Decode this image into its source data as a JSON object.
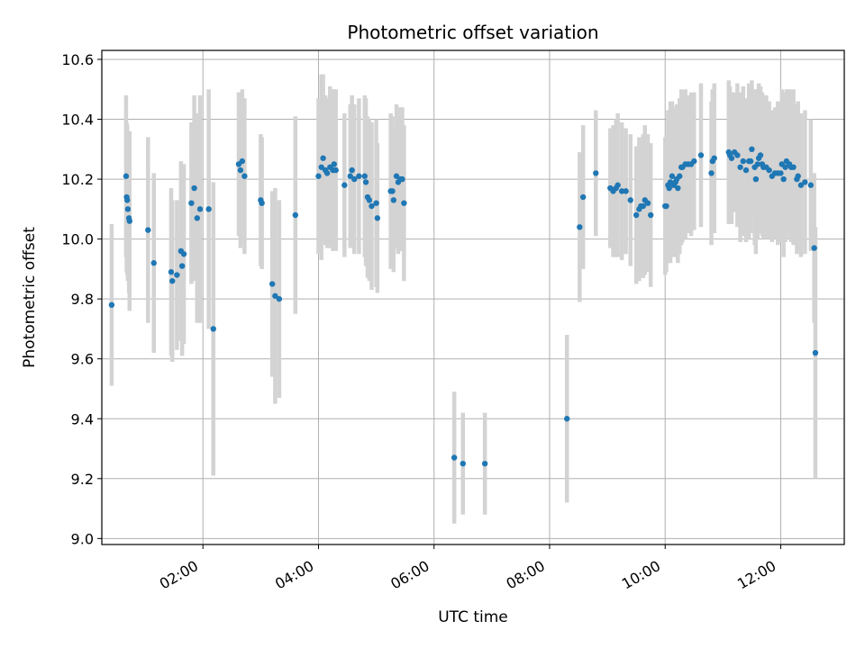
{
  "chart_data": {
    "type": "scatter",
    "title": "Photometric offset variation",
    "xlabel": "UTC time",
    "ylabel": "Photometric offset",
    "x_unit": "hours UTC",
    "xlim": [
      0.25,
      13.1
    ],
    "ylim": [
      8.98,
      10.63
    ],
    "yticks": [
      9.0,
      9.2,
      9.4,
      9.6,
      9.8,
      10.0,
      10.2,
      10.4,
      10.6
    ],
    "xticks": [
      2,
      4,
      6,
      8,
      10,
      12
    ],
    "xtick_labels": [
      "02:00",
      "04:00",
      "06:00",
      "08:00",
      "10:00",
      "12:00"
    ],
    "grid": true,
    "colors": {
      "point": "#1f77b4",
      "errorbar": "#d3d3d3",
      "grid": "#b0b0b0",
      "axes": "#000000"
    },
    "series": [
      {
        "points": [
          {
            "x": 0.42,
            "y": 9.78,
            "err": 0.27
          },
          {
            "x": 0.67,
            "y": 10.21,
            "err": 0.27
          },
          {
            "x": 0.68,
            "y": 10.14,
            "err": 0.25
          },
          {
            "x": 0.69,
            "y": 10.13,
            "err": 0.25
          },
          {
            "x": 0.7,
            "y": 10.1,
            "err": 0.24
          },
          {
            "x": 0.72,
            "y": 10.07,
            "err": 0.25
          },
          {
            "x": 0.73,
            "y": 10.06,
            "err": 0.3
          },
          {
            "x": 1.05,
            "y": 10.03,
            "err": 0.31
          },
          {
            "x": 1.15,
            "y": 9.92,
            "err": 0.3
          },
          {
            "x": 1.45,
            "y": 9.89,
            "err": 0.28
          },
          {
            "x": 1.47,
            "y": 9.86,
            "err": 0.27
          },
          {
            "x": 1.55,
            "y": 9.88,
            "err": 0.25
          },
          {
            "x": 1.62,
            "y": 9.96,
            "err": 0.3
          },
          {
            "x": 1.64,
            "y": 9.91,
            "err": 0.3
          },
          {
            "x": 1.67,
            "y": 9.95,
            "err": 0.3
          },
          {
            "x": 1.8,
            "y": 10.12,
            "err": 0.27
          },
          {
            "x": 1.85,
            "y": 10.17,
            "err": 0.31
          },
          {
            "x": 1.9,
            "y": 10.07,
            "err": 0.35
          },
          {
            "x": 1.95,
            "y": 10.1,
            "err": 0.38
          },
          {
            "x": 2.1,
            "y": 10.1,
            "err": 0.4
          },
          {
            "x": 2.18,
            "y": 9.7,
            "err": 0.49
          },
          {
            "x": 2.62,
            "y": 10.25,
            "err": 0.24
          },
          {
            "x": 2.65,
            "y": 10.23,
            "err": 0.26
          },
          {
            "x": 2.68,
            "y": 10.26,
            "err": 0.24
          },
          {
            "x": 2.72,
            "y": 10.21,
            "err": 0.26
          },
          {
            "x": 3.0,
            "y": 10.13,
            "err": 0.22
          },
          {
            "x": 3.02,
            "y": 10.12,
            "err": 0.22
          },
          {
            "x": 3.2,
            "y": 9.85,
            "err": 0.31
          },
          {
            "x": 3.25,
            "y": 9.81,
            "err": 0.36
          },
          {
            "x": 3.32,
            "y": 9.8,
            "err": 0.33
          },
          {
            "x": 3.6,
            "y": 10.08,
            "err": 0.33
          },
          {
            "x": 4.0,
            "y": 10.21,
            "err": 0.26
          },
          {
            "x": 4.05,
            "y": 10.24,
            "err": 0.31
          },
          {
            "x": 4.08,
            "y": 10.27,
            "err": 0.28
          },
          {
            "x": 4.12,
            "y": 10.23,
            "err": 0.25
          },
          {
            "x": 4.15,
            "y": 10.22,
            "err": 0.25
          },
          {
            "x": 4.2,
            "y": 10.24,
            "err": 0.27
          },
          {
            "x": 4.25,
            "y": 10.23,
            "err": 0.27
          },
          {
            "x": 4.27,
            "y": 10.25,
            "err": 0.25
          },
          {
            "x": 4.3,
            "y": 10.23,
            "err": 0.27
          },
          {
            "x": 4.45,
            "y": 10.18,
            "err": 0.24
          },
          {
            "x": 4.55,
            "y": 10.21,
            "err": 0.24
          },
          {
            "x": 4.58,
            "y": 10.23,
            "err": 0.25
          },
          {
            "x": 4.62,
            "y": 10.2,
            "err": 0.25
          },
          {
            "x": 4.7,
            "y": 10.21,
            "err": 0.26
          },
          {
            "x": 4.8,
            "y": 10.21,
            "err": 0.27
          },
          {
            "x": 4.82,
            "y": 10.19,
            "err": 0.28
          },
          {
            "x": 4.85,
            "y": 10.14,
            "err": 0.27
          },
          {
            "x": 4.88,
            "y": 10.13,
            "err": 0.27
          },
          {
            "x": 4.92,
            "y": 10.11,
            "err": 0.28
          },
          {
            "x": 5.0,
            "y": 10.12,
            "err": 0.28
          },
          {
            "x": 5.02,
            "y": 10.07,
            "err": 0.25
          },
          {
            "x": 5.25,
            "y": 10.16,
            "err": 0.26
          },
          {
            "x": 5.28,
            "y": 10.16,
            "err": 0.25
          },
          {
            "x": 5.3,
            "y": 10.13,
            "err": 0.24
          },
          {
            "x": 5.35,
            "y": 10.21,
            "err": 0.24
          },
          {
            "x": 5.38,
            "y": 10.19,
            "err": 0.24
          },
          {
            "x": 5.42,
            "y": 10.2,
            "err": 0.24
          },
          {
            "x": 5.45,
            "y": 10.2,
            "err": 0.24
          },
          {
            "x": 5.48,
            "y": 10.12,
            "err": 0.26
          },
          {
            "x": 6.35,
            "y": 9.27,
            "err": 0.22
          },
          {
            "x": 6.5,
            "y": 9.25,
            "err": 0.17
          },
          {
            "x": 6.88,
            "y": 9.25,
            "err": 0.17
          },
          {
            "x": 8.3,
            "y": 9.4,
            "err": 0.28
          },
          {
            "x": 8.52,
            "y": 10.04,
            "err": 0.25
          },
          {
            "x": 8.58,
            "y": 10.14,
            "err": 0.24
          },
          {
            "x": 8.8,
            "y": 10.22,
            "err": 0.21
          },
          {
            "x": 9.05,
            "y": 10.17,
            "err": 0.2
          },
          {
            "x": 9.1,
            "y": 10.16,
            "err": 0.22
          },
          {
            "x": 9.15,
            "y": 10.17,
            "err": 0.23
          },
          {
            "x": 9.18,
            "y": 10.18,
            "err": 0.24
          },
          {
            "x": 9.25,
            "y": 10.16,
            "err": 0.23
          },
          {
            "x": 9.32,
            "y": 10.16,
            "err": 0.21
          },
          {
            "x": 9.4,
            "y": 10.13,
            "err": 0.22
          },
          {
            "x": 9.5,
            "y": 10.08,
            "err": 0.23
          },
          {
            "x": 9.55,
            "y": 10.1,
            "err": 0.24
          },
          {
            "x": 9.58,
            "y": 10.11,
            "err": 0.22
          },
          {
            "x": 9.62,
            "y": 10.11,
            "err": 0.24
          },
          {
            "x": 9.65,
            "y": 10.13,
            "err": 0.25
          },
          {
            "x": 9.7,
            "y": 10.12,
            "err": 0.23
          },
          {
            "x": 9.75,
            "y": 10.08,
            "err": 0.24
          },
          {
            "x": 10.0,
            "y": 10.11,
            "err": 0.23
          },
          {
            "x": 10.02,
            "y": 10.11,
            "err": 0.22
          },
          {
            "x": 10.05,
            "y": 10.18,
            "err": 0.25
          },
          {
            "x": 10.07,
            "y": 10.17,
            "err": 0.25
          },
          {
            "x": 10.09,
            "y": 10.19,
            "err": 0.27
          },
          {
            "x": 10.12,
            "y": 10.21,
            "err": 0.25
          },
          {
            "x": 10.15,
            "y": 10.18,
            "err": 0.24
          },
          {
            "x": 10.18,
            "y": 10.19,
            "err": 0.25
          },
          {
            "x": 10.2,
            "y": 10.2,
            "err": 0.25
          },
          {
            "x": 10.22,
            "y": 10.17,
            "err": 0.25
          },
          {
            "x": 10.25,
            "y": 10.21,
            "err": 0.26
          },
          {
            "x": 10.28,
            "y": 10.24,
            "err": 0.26
          },
          {
            "x": 10.3,
            "y": 10.24,
            "err": 0.25
          },
          {
            "x": 10.35,
            "y": 10.25,
            "err": 0.25
          },
          {
            "x": 10.4,
            "y": 10.25,
            "err": 0.23
          },
          {
            "x": 10.45,
            "y": 10.25,
            "err": 0.24
          },
          {
            "x": 10.5,
            "y": 10.26,
            "err": 0.23
          },
          {
            "x": 10.62,
            "y": 10.28,
            "err": 0.24
          },
          {
            "x": 10.8,
            "y": 10.22,
            "err": 0.24
          },
          {
            "x": 10.82,
            "y": 10.26,
            "err": 0.24
          },
          {
            "x": 10.85,
            "y": 10.27,
            "err": 0.25
          },
          {
            "x": 11.1,
            "y": 10.29,
            "err": 0.24
          },
          {
            "x": 11.12,
            "y": 10.28,
            "err": 0.23
          },
          {
            "x": 11.15,
            "y": 10.27,
            "err": 0.22
          },
          {
            "x": 11.2,
            "y": 10.29,
            "err": 0.2
          },
          {
            "x": 11.25,
            "y": 10.28,
            "err": 0.24
          },
          {
            "x": 11.3,
            "y": 10.24,
            "err": 0.25
          },
          {
            "x": 11.35,
            "y": 10.26,
            "err": 0.25
          },
          {
            "x": 11.4,
            "y": 10.23,
            "err": 0.24
          },
          {
            "x": 11.45,
            "y": 10.26,
            "err": 0.26
          },
          {
            "x": 11.48,
            "y": 10.26,
            "err": 0.24
          },
          {
            "x": 11.5,
            "y": 10.3,
            "err": 0.23
          },
          {
            "x": 11.55,
            "y": 10.24,
            "err": 0.26
          },
          {
            "x": 11.57,
            "y": 10.2,
            "err": 0.25
          },
          {
            "x": 11.6,
            "y": 10.25,
            "err": 0.25
          },
          {
            "x": 11.62,
            "y": 10.27,
            "err": 0.25
          },
          {
            "x": 11.65,
            "y": 10.28,
            "err": 0.23
          },
          {
            "x": 11.68,
            "y": 10.25,
            "err": 0.24
          },
          {
            "x": 11.7,
            "y": 10.24,
            "err": 0.24
          },
          {
            "x": 11.75,
            "y": 10.24,
            "err": 0.24
          },
          {
            "x": 11.8,
            "y": 10.23,
            "err": 0.23
          },
          {
            "x": 11.85,
            "y": 10.21,
            "err": 0.22
          },
          {
            "x": 11.9,
            "y": 10.22,
            "err": 0.22
          },
          {
            "x": 11.95,
            "y": 10.22,
            "err": 0.24
          },
          {
            "x": 12.0,
            "y": 10.22,
            "err": 0.23
          },
          {
            "x": 12.02,
            "y": 10.25,
            "err": 0.25
          },
          {
            "x": 12.05,
            "y": 10.2,
            "err": 0.26
          },
          {
            "x": 12.08,
            "y": 10.24,
            "err": 0.25
          },
          {
            "x": 12.1,
            "y": 10.26,
            "err": 0.24
          },
          {
            "x": 12.15,
            "y": 10.25,
            "err": 0.25
          },
          {
            "x": 12.18,
            "y": 10.24,
            "err": 0.25
          },
          {
            "x": 12.22,
            "y": 10.24,
            "err": 0.26
          },
          {
            "x": 12.28,
            "y": 10.2,
            "err": 0.25
          },
          {
            "x": 12.3,
            "y": 10.21,
            "err": 0.25
          },
          {
            "x": 12.35,
            "y": 10.18,
            "err": 0.24
          },
          {
            "x": 12.42,
            "y": 10.19,
            "err": 0.24
          },
          {
            "x": 12.52,
            "y": 10.18,
            "err": 0.22
          },
          {
            "x": 12.58,
            "y": 9.97,
            "err": 0.25
          },
          {
            "x": 12.6,
            "y": 9.62,
            "err": 0.42
          }
        ]
      }
    ]
  }
}
